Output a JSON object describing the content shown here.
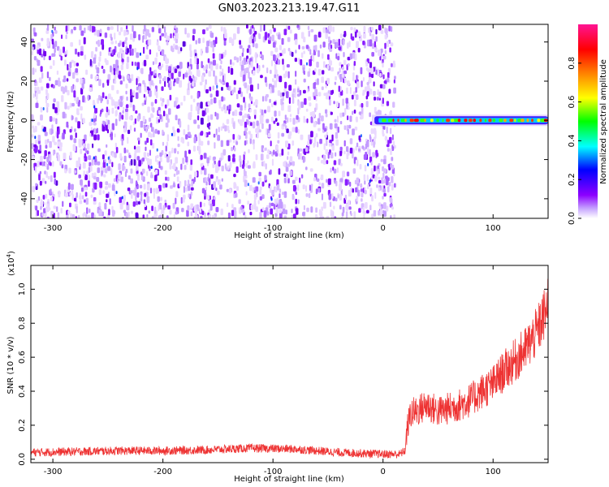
{
  "figure": {
    "title": "GN03.2023.213.19.47.G11"
  },
  "chart_data": [
    {
      "type": "heatmap",
      "xlabel": "Height of straight line (km)",
      "ylabel": "Frequency (Hz)",
      "xlim": [
        -320,
        150
      ],
      "ylim": [
        -50,
        49
      ],
      "xticks": [
        -300,
        -200,
        -100,
        0,
        100
      ],
      "yticks": [
        -40,
        -20,
        0,
        20,
        40
      ],
      "noise_region_km": [
        -320,
        10
      ],
      "signal_region_km": [
        -10,
        150
      ],
      "signal_frequency_hz": 0,
      "colorbar": {
        "label": "Normalized spectral amplitude",
        "range": [
          0,
          1
        ],
        "ticks": [
          0.0,
          0.2,
          0.4,
          0.6,
          0.8
        ],
        "colors": [
          "#ffffff",
          "#c7a6ff",
          "#8c00ff",
          "#0000ff",
          "#00ffff",
          "#00ff00",
          "#ffff00",
          "#ff7f00",
          "#ff0000",
          "#ff1493"
        ]
      }
    },
    {
      "type": "line",
      "xlabel": "Height of straight line (km)",
      "ylabel": "SNR (10 * v/v)",
      "yscale_label": "(x10",
      "yscale_exp": "4",
      "yscale_close": ")",
      "xlim": [
        -320,
        150
      ],
      "ylim": [
        -0.02,
        1.14
      ],
      "xticks": [
        -300,
        -200,
        -100,
        0,
        100
      ],
      "yticks": [
        0.0,
        0.2,
        0.4,
        0.6,
        0.8,
        1.0
      ],
      "color": "#ee3333",
      "series": [
        {
          "x": [
            -320,
            -280,
            -240,
            -200,
            -160,
            -120,
            -80,
            -40,
            0,
            15,
            20,
            22,
            25,
            30,
            40,
            50,
            60,
            70,
            80,
            90,
            100,
            110,
            120,
            130,
            140,
            150
          ],
          "y": [
            0.04,
            0.045,
            0.05,
            0.05,
            0.055,
            0.065,
            0.06,
            0.04,
            0.03,
            0.03,
            0.05,
            0.18,
            0.27,
            0.28,
            0.32,
            0.28,
            0.3,
            0.32,
            0.35,
            0.4,
            0.44,
            0.52,
            0.58,
            0.65,
            0.75,
            0.9
          ]
        }
      ]
    }
  ]
}
